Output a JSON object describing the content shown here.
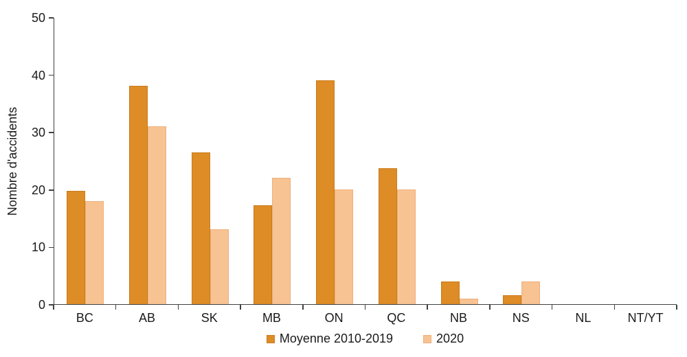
{
  "chart_data": {
    "type": "bar",
    "title": "",
    "ylabel": "Nombre d'accidents",
    "xlabel": "",
    "ylim": [
      0,
      50
    ],
    "yticks": [
      0,
      10,
      20,
      30,
      40,
      50
    ],
    "grid": false,
    "legend_position": "bottom-center",
    "categories": [
      "BC",
      "AB",
      "SK",
      "MB",
      "ON",
      "QC",
      "NB",
      "NS",
      "NL",
      "NT/YT"
    ],
    "series": [
      {
        "name": "Moyenne 2010-2019",
        "color": "#DE8C26",
        "border_color": "#C87C1B",
        "values": [
          19.7,
          38,
          26.4,
          17.2,
          39,
          23.7,
          3.9,
          1.5,
          0,
          0
        ]
      },
      {
        "name": "2020",
        "color": "#F8C392",
        "border_color": "#EFAE7B",
        "values": [
          18,
          31,
          13,
          22,
          20,
          20,
          1,
          4,
          0,
          0
        ]
      }
    ],
    "axis_color": "#404040",
    "text_color": "#262626"
  }
}
